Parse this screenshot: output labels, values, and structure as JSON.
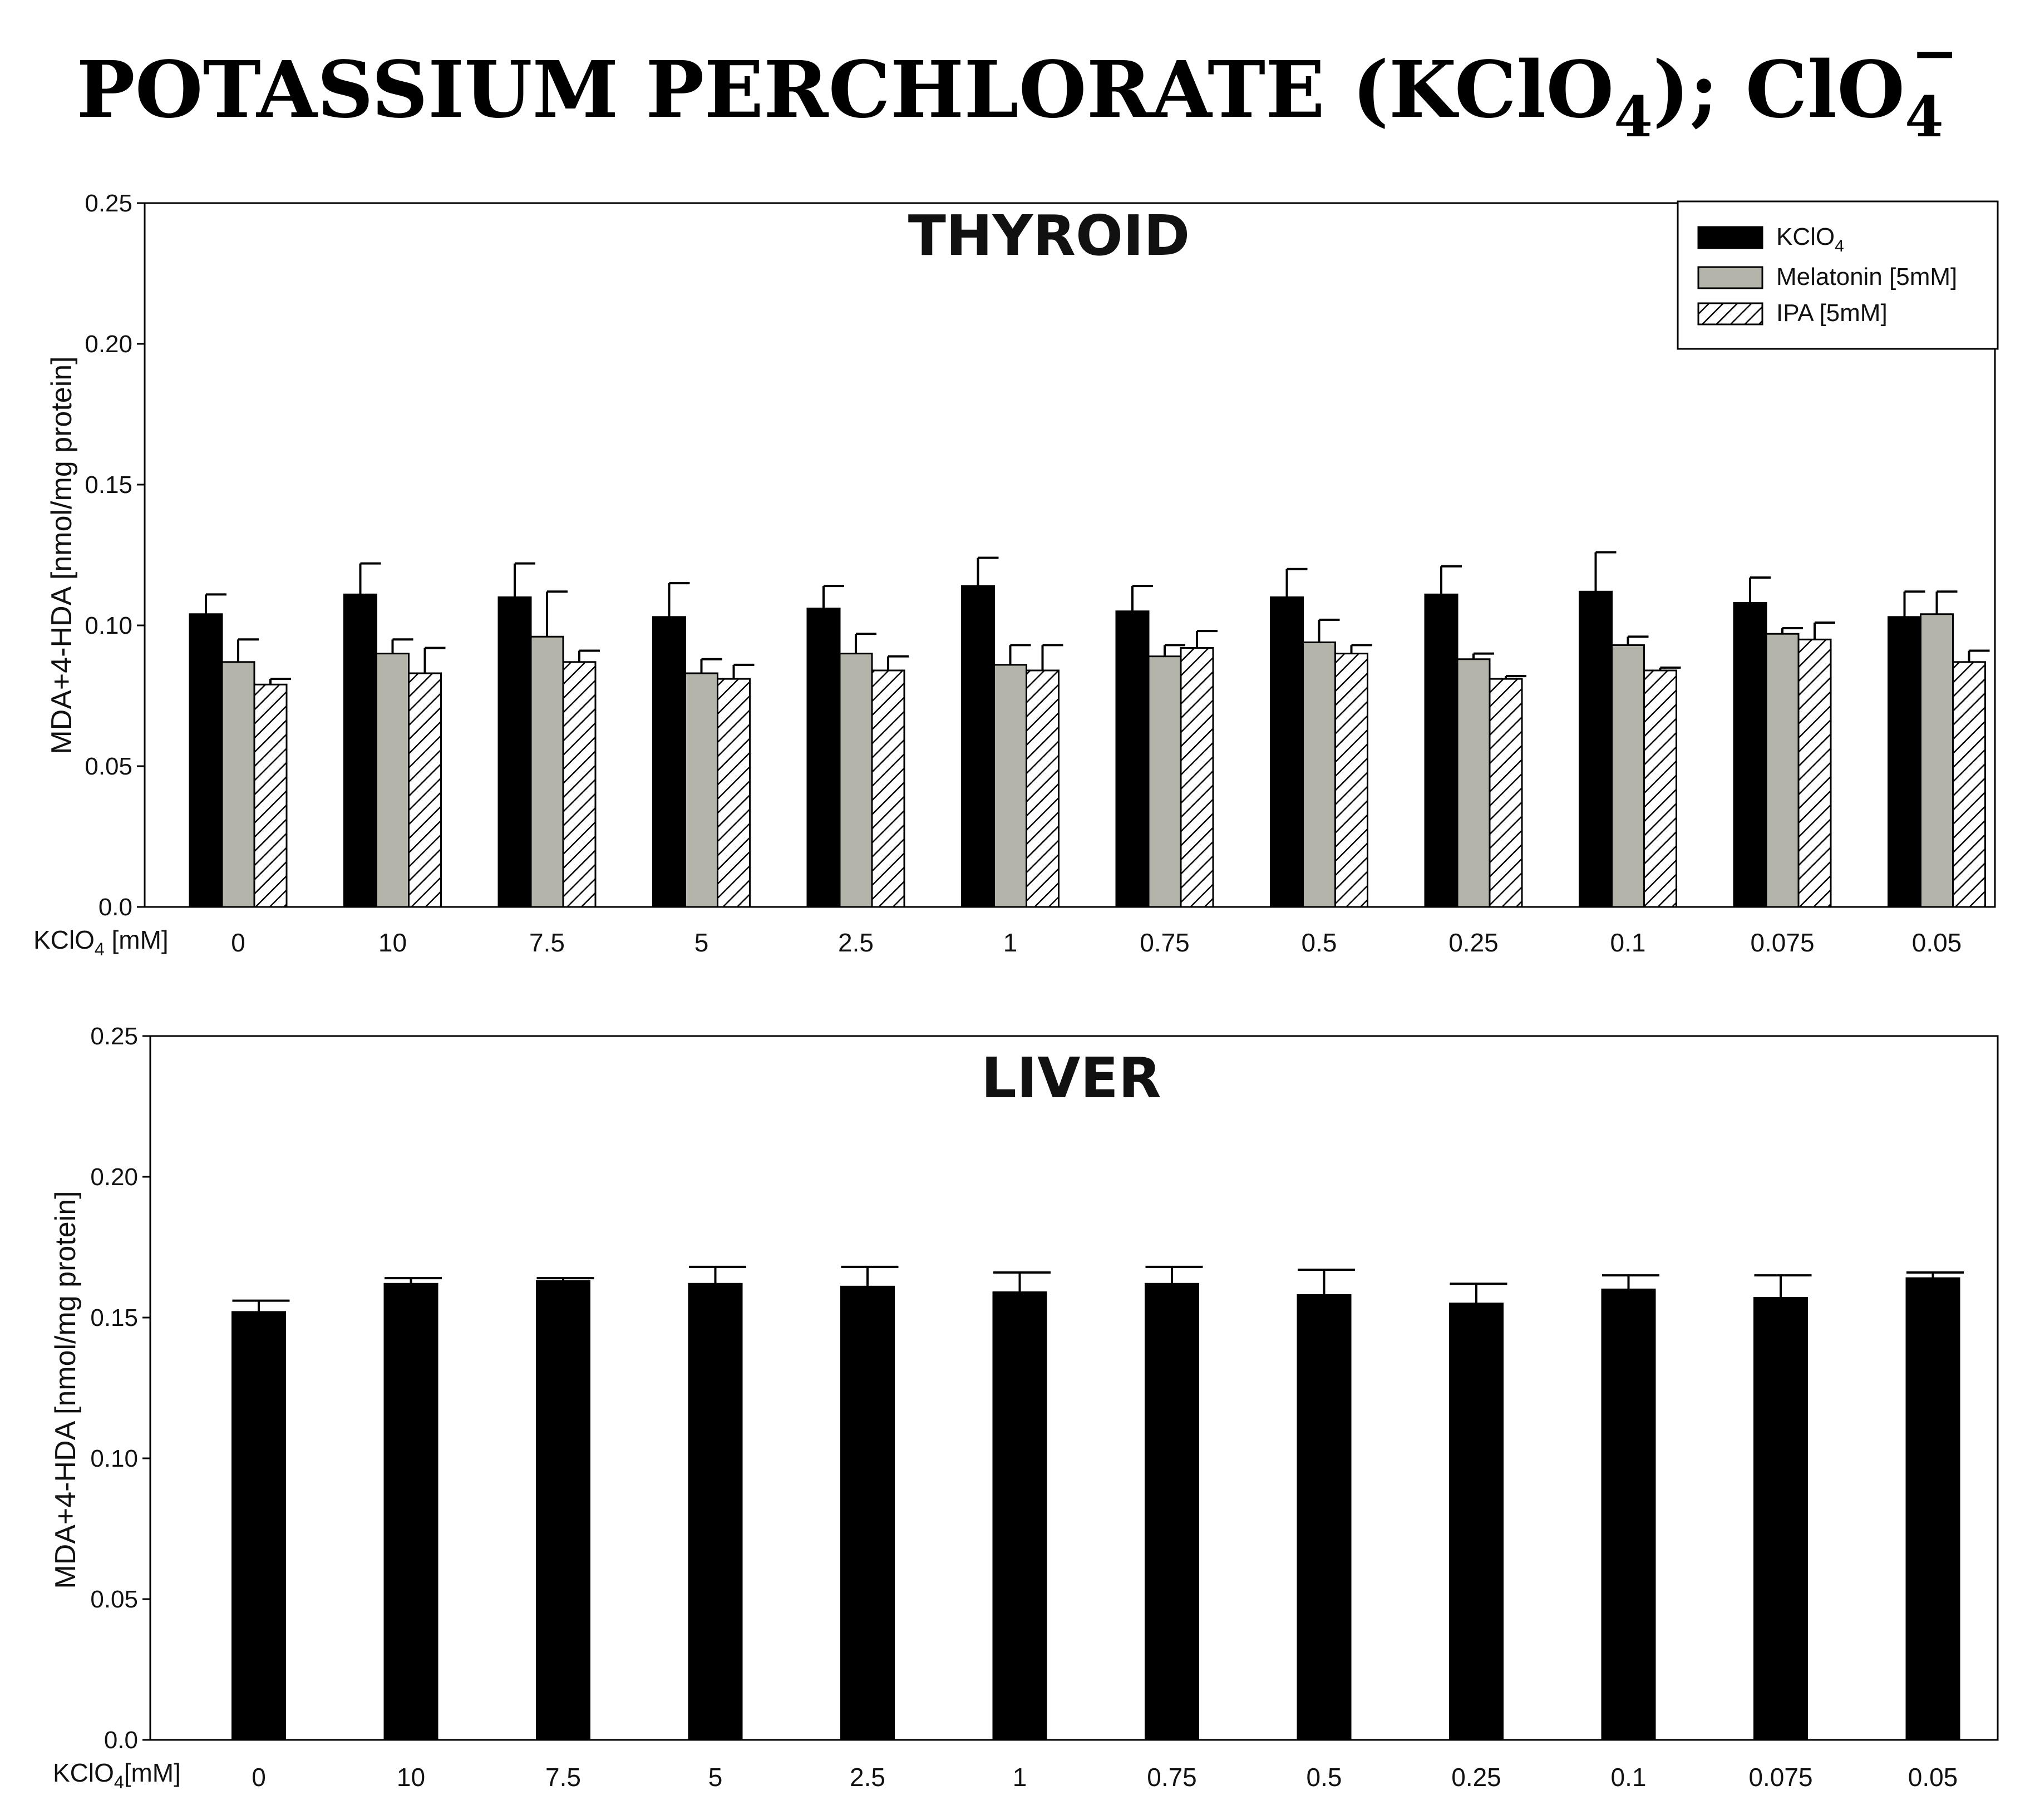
{
  "figure": {
    "title_main": "POTASSIUM PERCHLORATE (KClO",
    "title_sub1": "4",
    "title_mid": "); ClO",
    "title_sub2": "4",
    "title_sup": "−"
  },
  "colors": {
    "kclo4": "#000000",
    "melatonin": "#b4b4aa",
    "ipa_hatch": "#000000",
    "axis": "#000000"
  },
  "chart_data": [
    {
      "type": "bar",
      "title": "THYROID",
      "xlabel_prefix": "KClO",
      "xlabel_sub": "4",
      "xlabel_suffix": " [mM]",
      "ylabel": "MDA+4-HDA [nmol/mg protein]",
      "ylim": [
        0,
        0.25
      ],
      "yticks": [
        "0.0",
        "0.05",
        "0.10",
        "0.15",
        "0.20",
        "0.25"
      ],
      "ytick_values": [
        0,
        0.05,
        0.1,
        0.15,
        0.2,
        0.25
      ],
      "categories": [
        "0",
        "10",
        "7.5",
        "5",
        "2.5",
        "1",
        "0.75",
        "0.5",
        "0.25",
        "0.1",
        "0.075",
        "0.05"
      ],
      "legend": {
        "position": "top-right",
        "entries": [
          {
            "label": "KClO",
            "sub": "4",
            "style": "black"
          },
          {
            "label": "Melatonin [5mM]",
            "sub": "",
            "style": "gray"
          },
          {
            "label": "IPA [5mM]",
            "sub": "",
            "style": "hatch"
          }
        ]
      },
      "series": [
        {
          "name": "KClO4",
          "style": "black",
          "values": [
            0.104,
            0.111,
            0.11,
            0.103,
            0.106,
            0.114,
            0.105,
            0.11,
            0.111,
            0.112,
            0.108,
            0.103
          ],
          "errors": [
            0.007,
            0.011,
            0.012,
            0.012,
            0.008,
            0.01,
            0.009,
            0.01,
            0.01,
            0.014,
            0.009,
            0.009
          ]
        },
        {
          "name": "Melatonin [5mM]",
          "style": "gray",
          "values": [
            0.087,
            0.09,
            0.096,
            0.083,
            0.09,
            0.086,
            0.089,
            0.094,
            0.088,
            0.093,
            0.097,
            0.104
          ],
          "errors": [
            0.008,
            0.005,
            0.016,
            0.005,
            0.007,
            0.007,
            0.004,
            0.008,
            0.002,
            0.003,
            0.002,
            0.008
          ]
        },
        {
          "name": "IPA [5mM]",
          "style": "hatch",
          "values": [
            0.079,
            0.083,
            0.087,
            0.081,
            0.084,
            0.084,
            0.092,
            0.09,
            0.081,
            0.084,
            0.095,
            0.087
          ],
          "errors": [
            0.002,
            0.009,
            0.004,
            0.005,
            0.005,
            0.009,
            0.006,
            0.003,
            0.001,
            0.001,
            0.006,
            0.004
          ]
        }
      ]
    },
    {
      "type": "bar",
      "title": "LIVER",
      "xlabel_prefix": "KClO",
      "xlabel_sub": "4",
      "xlabel_suffix": "[mM]",
      "ylabel": "MDA+4-HDA [nmol/mg protein]",
      "ylim": [
        0,
        0.25
      ],
      "yticks": [
        "0.0",
        "0.05",
        "0.10",
        "0.15",
        "0.20",
        "0.25"
      ],
      "ytick_values": [
        0,
        0.05,
        0.1,
        0.15,
        0.2,
        0.25
      ],
      "categories": [
        "0",
        "10",
        "7.5",
        "5",
        "2.5",
        "1",
        "0.75",
        "0.5",
        "0.25",
        "0.1",
        "0.075",
        "0.05"
      ],
      "series": [
        {
          "name": "KClO4",
          "style": "black",
          "values": [
            0.152,
            0.162,
            0.163,
            0.162,
            0.161,
            0.159,
            0.162,
            0.158,
            0.155,
            0.16,
            0.157,
            0.164
          ],
          "errors": [
            0.004,
            0.002,
            0.001,
            0.006,
            0.007,
            0.007,
            0.006,
            0.009,
            0.007,
            0.005,
            0.008,
            0.002
          ]
        }
      ]
    }
  ]
}
